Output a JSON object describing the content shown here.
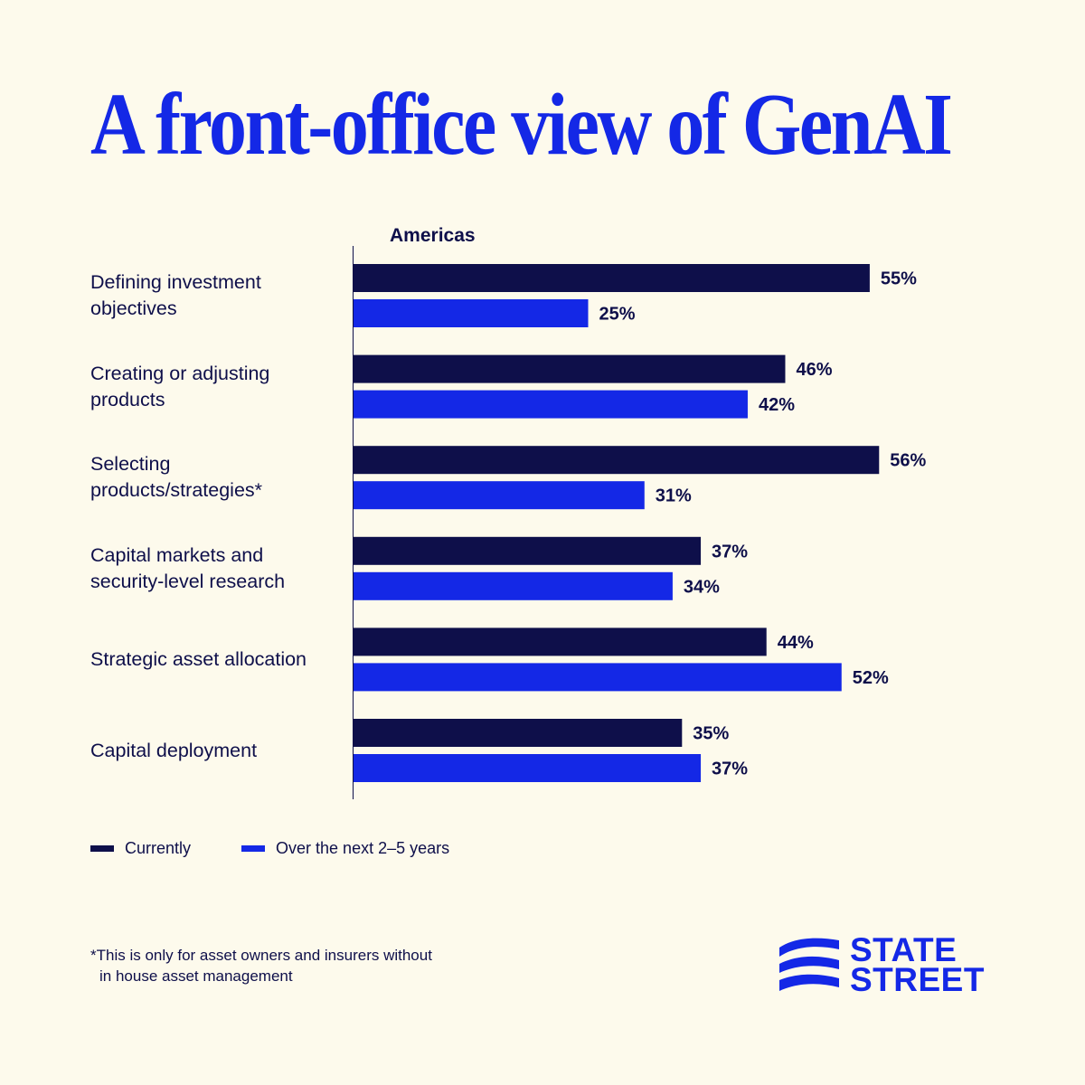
{
  "title": "A front-office view of GenAI",
  "chart_data": {
    "type": "bar",
    "orientation": "horizontal",
    "subtitle": "Americas",
    "categories": [
      [
        "Defining investment",
        "objectives"
      ],
      [
        "Creating or adjusting",
        "products"
      ],
      [
        "Selecting",
        "products/strategies*"
      ],
      [
        "Capital markets and",
        "security-level research"
      ],
      [
        "Strategic asset allocation"
      ],
      [
        "Capital deployment"
      ]
    ],
    "series": [
      {
        "name": "Currently",
        "color": "#0e0f4a",
        "values": [
          55,
          46,
          56,
          37,
          44,
          35
        ]
      },
      {
        "name": "Over the next 2–5 years",
        "color": "#1428e6",
        "values": [
          25,
          42,
          31,
          34,
          52,
          37
        ]
      }
    ],
    "value_suffix": "%",
    "xlim": [
      0,
      100
    ],
    "legend_position": "bottom-left",
    "grid": false
  },
  "footnote": {
    "line1": "*This is only for asset owners and insurers without",
    "line2": "in house asset management"
  },
  "logo": {
    "line1": "STATE",
    "line2": "STREET",
    "color": "#1428e6"
  }
}
